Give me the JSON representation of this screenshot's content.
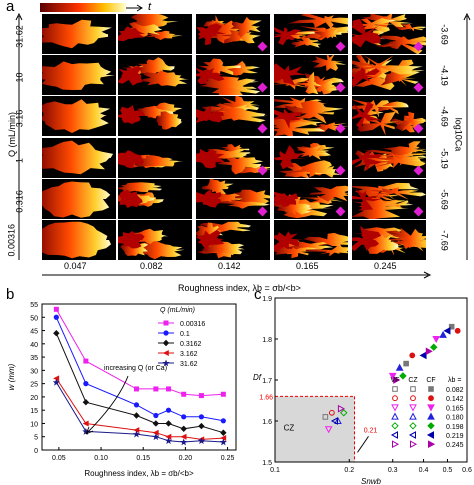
{
  "panel_a": {
    "letter": "a",
    "time_symbol": "t",
    "q_axis_label": "Q (mL/min)",
    "q_values": [
      "31.62",
      "10",
      "3.16",
      "1",
      "0.316",
      "0.00316"
    ],
    "ca_axis_label": "log10Ca",
    "ca_values": [
      "-3.69",
      "-4.19",
      "-4.69",
      "-5.19",
      "-5.69",
      "-7.69"
    ],
    "roughness_values": [
      "0.047",
      "0.082",
      "0.142",
      "0.165",
      "0.245"
    ],
    "xlabel": "Roughness index, λb = σb/<b>",
    "colors": {
      "low": "#8b0000",
      "mid": "#ff5a00",
      "high": "#ffff99",
      "marker": "#e020d0"
    }
  },
  "chart_data": [
    {
      "panel": "b",
      "type": "line",
      "xlabel": "Roughness index, λb = σb/<b>",
      "ylabel": "w (mm)",
      "xlim": [
        0.03,
        0.26
      ],
      "ylim": [
        0,
        55
      ],
      "xticks": [
        "0.05",
        "0.10",
        "0.15",
        "0.20",
        "0.25"
      ],
      "yticks": [
        "0",
        "5",
        "10",
        "15",
        "20",
        "25",
        "30",
        "35",
        "40",
        "45",
        "50",
        "55"
      ],
      "legend_title": "Q (mL/min)",
      "legend_position": "top-right",
      "annotation": "increasing Q (or Ca)",
      "x": [
        0.047,
        0.082,
        0.142,
        0.165,
        0.18,
        0.198,
        0.219,
        0.245
      ],
      "series": [
        {
          "name": "0.00316",
          "color": "#ee22ee",
          "marker": "square",
          "values": [
            53,
            33.5,
            23,
            23,
            23,
            21,
            20.5,
            21
          ]
        },
        {
          "name": "0.1",
          "color": "#1a1aff",
          "marker": "circle",
          "values": [
            50,
            25,
            17,
            13,
            15,
            12.5,
            12.5,
            11
          ]
        },
        {
          "name": "0.3162",
          "color": "#111111",
          "marker": "diamond",
          "values": [
            44,
            18,
            13,
            10,
            10,
            8,
            9,
            6.5
          ]
        },
        {
          "name": "3.162",
          "color": "#dd1111",
          "marker": "triangle-left",
          "values": [
            27,
            10,
            7.5,
            6.5,
            5,
            5,
            4,
            4.5
          ]
        },
        {
          "name": "31.62",
          "color": "#1a1a8a",
          "marker": "star",
          "values": [
            25.5,
            7,
            6,
            5,
            3.5,
            3,
            3.5,
            3
          ]
        }
      ]
    },
    {
      "panel": "c",
      "type": "scatter",
      "xlabel": "Snwb",
      "ylabel": "Df",
      "xlim": [
        0.1,
        0.6
      ],
      "ylim": [
        1.5,
        1.9
      ],
      "xscale": "log",
      "xticks": [
        "0.1",
        "0.2",
        "0.3",
        "0.4",
        "0.5",
        "0.6"
      ],
      "yticks": [
        "1.5",
        "1.6",
        "1.7",
        "1.8",
        "1.9"
      ],
      "threshold_x": 0.21,
      "threshold_y": 1.66,
      "threshold_x_label": "0.21",
      "threshold_y_label": "1.66",
      "region_label": "CZ",
      "legend_headers": [
        "VF",
        "CZ",
        "CF"
      ],
      "legend_lambda_label": "λb =",
      "legend_position": "bottom-right",
      "series": [
        {
          "name": "0.082",
          "color": "#777777",
          "marker": "square",
          "points": [
            [
              0.16,
              1.61
            ],
            [
              0.34,
              1.74
            ],
            [
              0.52,
              1.83
            ]
          ]
        },
        {
          "name": "0.142",
          "color": "#dd1111",
          "marker": "circle",
          "points": [
            [
              0.17,
              1.62
            ],
            [
              0.36,
              1.76
            ],
            [
              0.55,
              1.82
            ]
          ]
        },
        {
          "name": "0.165",
          "color": "#ee22ee",
          "marker": "triangle-down",
          "points": [
            [
              0.165,
              1.58
            ],
            [
              0.3,
              1.71
            ],
            [
              0.45,
              1.8
            ]
          ]
        },
        {
          "name": "0.180",
          "color": "#2222dd",
          "marker": "triangle-up",
          "points": [
            [
              0.18,
              1.6
            ],
            [
              0.32,
              1.73
            ],
            [
              0.48,
              1.81
            ]
          ]
        },
        {
          "name": "0.198",
          "color": "#00aa00",
          "marker": "diamond",
          "points": [
            [
              0.19,
              1.62
            ],
            [
              0.33,
              1.71
            ],
            [
              0.44,
              1.78
            ]
          ]
        },
        {
          "name": "0.219",
          "color": "#0000aa",
          "marker": "triangle-left",
          "points": [
            [
              0.175,
              1.6
            ],
            [
              0.4,
              1.76
            ],
            [
              0.5,
              1.82
            ]
          ]
        },
        {
          "name": "0.245",
          "color": "#aa00aa",
          "marker": "triangle-right",
          "points": [
            [
              0.185,
              1.63
            ],
            [
              0.31,
              1.7
            ],
            [
              0.42,
              1.77
            ]
          ]
        }
      ]
    }
  ]
}
